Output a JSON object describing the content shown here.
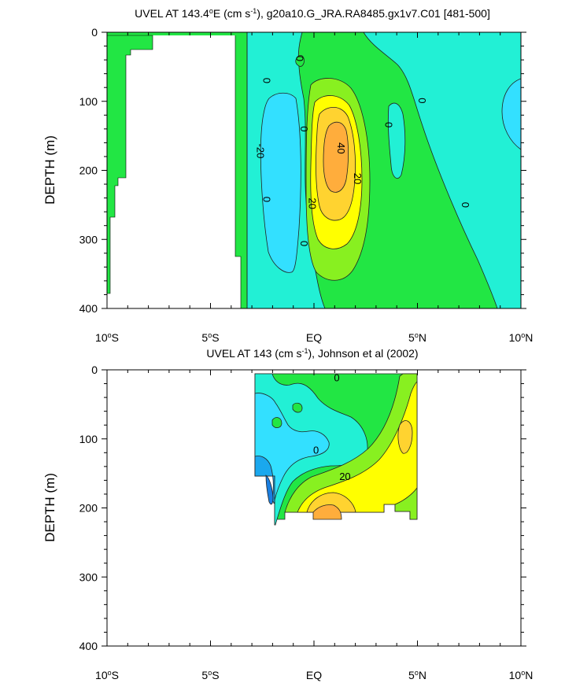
{
  "chart_data": [
    {
      "type": "contour",
      "title_prefix": "UVEL AT 143.4",
      "title_deg": "o",
      "title_mid": "E (cm s",
      "title_exp": "-1",
      "title_suffix": "), g20a10.G_JRA.RA8485.gx1v7.C01 [481-500]",
      "ylabel": "DEPTH (m)",
      "xlim": [
        -10,
        10
      ],
      "ylim": [
        400,
        0
      ],
      "x_ticks": [
        {
          "value": -10,
          "num": "10",
          "deg": "o",
          "hem": "S"
        },
        {
          "value": -5,
          "num": "5",
          "deg": "o",
          "hem": "S"
        },
        {
          "value": 0,
          "num": "EQ",
          "deg": "",
          "hem": ""
        },
        {
          "value": 5,
          "num": "5",
          "deg": "o",
          "hem": "N"
        },
        {
          "value": 10,
          "num": "10",
          "deg": "o",
          "hem": "N"
        }
      ],
      "y_ticks": [
        0,
        100,
        200,
        300,
        400
      ],
      "contour_levels": [
        -40,
        -30,
        -20,
        -10,
        0,
        10,
        20,
        30,
        40
      ],
      "fill_colors": {
        "lt_-30": "#1a7ee0",
        "-30_-20": "#1aa8ee",
        "-20_-10": "#33e0ff",
        "-10_0": "#22f0d5",
        "0_10": "#22e644",
        "10_20": "#88f020",
        "20_30": "#ffff00",
        "30_40": "#ffd330",
        "gt_40": "#ffad3c"
      },
      "contour_labels": [
        {
          "text": "0",
          "x": -2.3,
          "y": 70,
          "rot": 90
        },
        {
          "text": "0",
          "x": -2.3,
          "y": 242,
          "rot": 90
        },
        {
          "text": "-20",
          "x": -2.6,
          "y": 172,
          "rot": 90
        },
        {
          "text": "0",
          "x": -0.7,
          "y": 38,
          "rot": 90
        },
        {
          "text": "0",
          "x": -0.5,
          "y": 140,
          "rot": 90
        },
        {
          "text": "0",
          "x": -0.5,
          "y": 306,
          "rot": 90
        },
        {
          "text": "40",
          "x": 1.3,
          "y": 168,
          "rot": 90
        },
        {
          "text": "20",
          "x": 2.1,
          "y": 212,
          "rot": 90
        },
        {
          "text": "20",
          "x": -0.1,
          "y": 248,
          "rot": 90
        },
        {
          "text": "0",
          "x": 3.6,
          "y": 134,
          "rot": 90
        },
        {
          "text": "0",
          "x": 5.2,
          "y": 99,
          "rot": 90
        },
        {
          "text": "0",
          "x": 7.3,
          "y": 250,
          "rot": 90
        }
      ]
    },
    {
      "type": "contour",
      "title_prefix": "UVEL AT 143 (cm s",
      "title_exp": "-1",
      "title_suffix": "), Johnson et al (2002)",
      "ylabel": "DEPTH (m)",
      "xlim": [
        -10,
        10
      ],
      "ylim": [
        400,
        0
      ],
      "x_ticks": [
        {
          "value": -10,
          "num": "10",
          "deg": "o",
          "hem": "S"
        },
        {
          "value": -5,
          "num": "5",
          "deg": "o",
          "hem": "S"
        },
        {
          "value": 0,
          "num": "EQ",
          "deg": "",
          "hem": ""
        },
        {
          "value": 5,
          "num": "5",
          "deg": "o",
          "hem": "N"
        },
        {
          "value": 10,
          "num": "10",
          "deg": "o",
          "hem": "N"
        }
      ],
      "y_ticks": [
        0,
        100,
        200,
        300,
        400
      ],
      "contour_labels": [
        {
          "text": "0",
          "x": 1.1,
          "y": 12,
          "rot": 0
        },
        {
          "text": "0",
          "x": 0.1,
          "y": 117,
          "rot": 0
        },
        {
          "text": "20",
          "x": 1.5,
          "y": 155,
          "rot": 0
        }
      ]
    }
  ]
}
